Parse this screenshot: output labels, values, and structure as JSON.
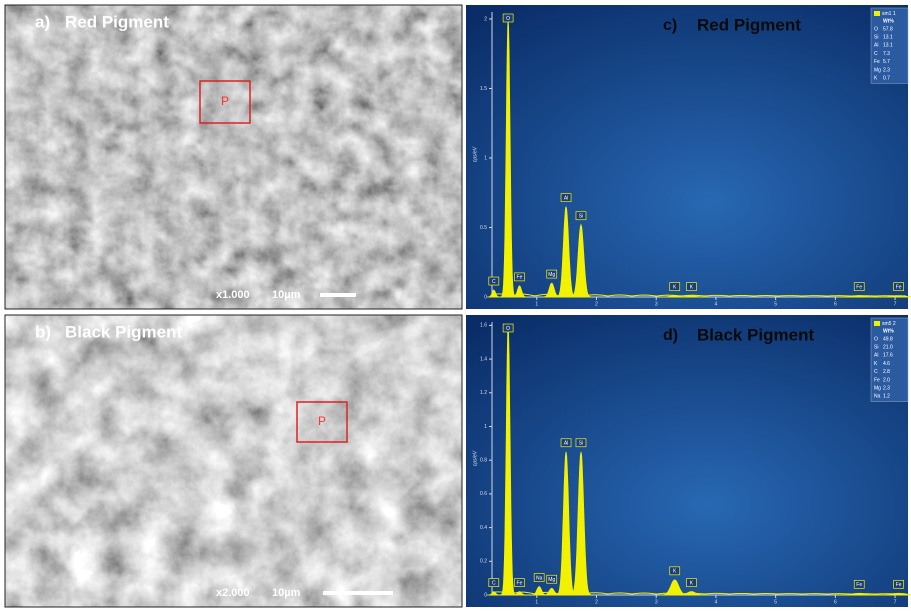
{
  "panels": [
    {
      "label": "a)",
      "title": "Red Pigment",
      "magnification": "x1.000",
      "scale": "10µm",
      "marker": "P"
    },
    {
      "label": "b)",
      "title": "Black Pigment",
      "magnification": "x2.000",
      "scale": "10µm",
      "marker": "P"
    }
  ],
  "spectra": [
    {
      "label": "c)",
      "title": "Red Pigment",
      "y_label": "cps/eV",
      "color": "#f2f200",
      "xlim": [
        0.25,
        7.2
      ],
      "xticks": [
        1,
        2,
        3,
        4,
        5,
        6,
        7
      ],
      "ylim": [
        0,
        2.05
      ],
      "yticks": [
        0,
        0.5,
        1,
        1.5,
        2
      ],
      "peaks": [
        {
          "element": "C",
          "energy": 0.28,
          "height": 0.05
        },
        {
          "element": "O",
          "energy": 0.52,
          "height": 2.0
        },
        {
          "element": "Fe",
          "energy": 0.71,
          "height": 0.08
        },
        {
          "element": "Mg",
          "energy": 1.25,
          "height": 0.1
        },
        {
          "element": "Al",
          "energy": 1.49,
          "height": 0.65
        },
        {
          "element": "Si",
          "energy": 1.74,
          "height": 0.52
        },
        {
          "element": "K",
          "energy": 3.31,
          "height": 0.01
        },
        {
          "element": "K",
          "energy": 3.59,
          "height": 0.01
        },
        {
          "element": "Fe",
          "energy": 6.4,
          "height": 0.01
        },
        {
          "element": "Fe",
          "energy": 7.06,
          "height": 0.01
        }
      ],
      "legend": {
        "name": "sm1 1",
        "header": "Wt%",
        "rows": [
          [
            "O",
            "57.8"
          ],
          [
            "Si",
            "13.1"
          ],
          [
            "Al",
            "13.1"
          ],
          [
            "C",
            "7.3"
          ],
          [
            "Fe",
            "5.7"
          ],
          [
            "Mg",
            "2.3"
          ],
          [
            "K",
            "0.7"
          ]
        ]
      }
    },
    {
      "label": "d)",
      "title": "Black Pigment",
      "y_label": "cps/eV",
      "color": "#f2f200",
      "xlim": [
        0.25,
        7.2
      ],
      "xticks": [
        1,
        2,
        3,
        4,
        5,
        6,
        7
      ],
      "ylim": [
        0,
        1.62
      ],
      "yticks": [
        0,
        0.2,
        0.4,
        0.6,
        0.8,
        1,
        1.2,
        1.4,
        1.6
      ],
      "peaks": [
        {
          "element": "C",
          "energy": 0.28,
          "height": 0.02
        },
        {
          "element": "O",
          "energy": 0.52,
          "height": 1.6
        },
        {
          "element": "Fe",
          "energy": 0.71,
          "height": 0.02
        },
        {
          "element": "Na",
          "energy": 1.04,
          "height": 0.05
        },
        {
          "element": "Mg",
          "energy": 1.25,
          "height": 0.04
        },
        {
          "element": "Al",
          "energy": 1.49,
          "height": 0.85
        },
        {
          "element": "Si",
          "energy": 1.74,
          "height": 0.85
        },
        {
          "element": "K",
          "energy": 3.31,
          "height": 0.09
        },
        {
          "element": "K",
          "energy": 3.59,
          "height": 0.02
        },
        {
          "element": "Fe",
          "energy": 6.4,
          "height": 0.01
        },
        {
          "element": "Fe",
          "energy": 7.06,
          "height": 0.01
        }
      ],
      "legend": {
        "name": "sm5 2",
        "header": "Wt%",
        "rows": [
          [
            "O",
            "49.8"
          ],
          [
            "Si",
            "21.0"
          ],
          [
            "Al",
            "17.6"
          ],
          [
            "K",
            "4.6"
          ],
          [
            "C",
            "2.8"
          ],
          [
            "Fe",
            "2.0"
          ],
          [
            "Mg",
            "2.3"
          ],
          [
            "Na",
            "1.2"
          ]
        ]
      }
    }
  ]
}
